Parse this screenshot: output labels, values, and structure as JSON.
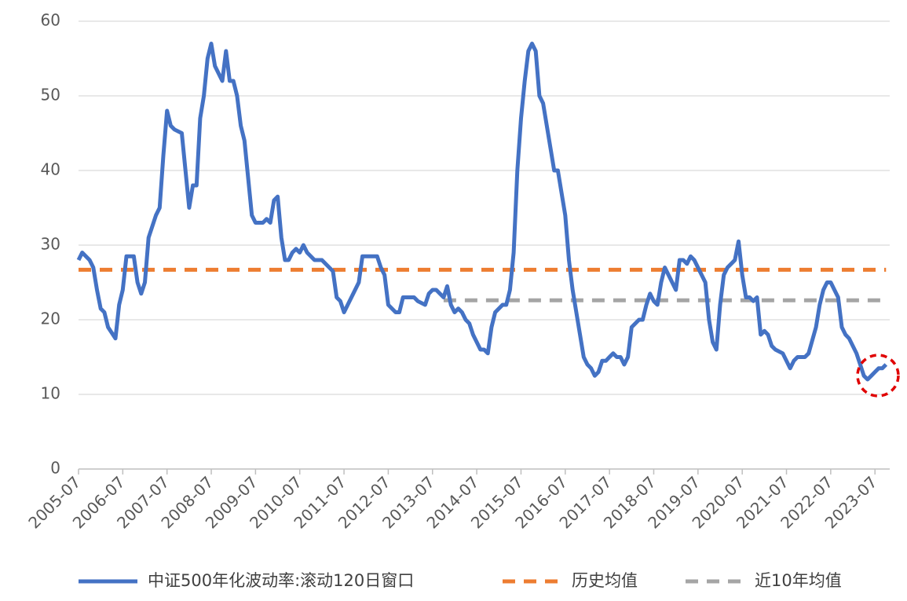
{
  "chart_data": {
    "type": "line",
    "ylim": [
      0,
      60
    ],
    "yticks": [
      0,
      10,
      20,
      30,
      40,
      50,
      60
    ],
    "grid": true,
    "xlim": [
      "2005-07",
      "2023-11"
    ],
    "xticks": [
      "2005-07",
      "2006-07",
      "2007-07",
      "2008-07",
      "2009-07",
      "2010-07",
      "2011-07",
      "2012-07",
      "2013-07",
      "2014-07",
      "2015-07",
      "2016-07",
      "2017-07",
      "2018-07",
      "2019-07",
      "2020-07",
      "2021-07",
      "2022-07",
      "2023-07"
    ],
    "legend": "bottom",
    "series": [
      {
        "name": "中证500年化波动率:滚动120日窗口",
        "color": "#4472c4",
        "dashed": false,
        "x": [
          "2005-07",
          "2005-08",
          "2005-09",
          "2005-10",
          "2005-11",
          "2005-12",
          "2006-01",
          "2006-02",
          "2006-03",
          "2006-05",
          "2006-06",
          "2006-07",
          "2006-08",
          "2006-10",
          "2006-11",
          "2006-12",
          "2007-01",
          "2007-02",
          "2007-04",
          "2007-05",
          "2007-06",
          "2007-07",
          "2007-08",
          "2007-09",
          "2007-11",
          "2007-12",
          "2008-01",
          "2008-02",
          "2008-03",
          "2008-04",
          "2008-05",
          "2008-06",
          "2008-07",
          "2008-08",
          "2008-09",
          "2008-10",
          "2008-11",
          "2008-12",
          "2009-01",
          "2009-02",
          "2009-03",
          "2009-04",
          "2009-05",
          "2009-06",
          "2009-07",
          "2009-09",
          "2009-10",
          "2009-11",
          "2009-12",
          "2010-01",
          "2010-02",
          "2010-03",
          "2010-04",
          "2010-05",
          "2010-06",
          "2010-07",
          "2010-08",
          "2010-09",
          "2010-11",
          "2011-01",
          "2011-03",
          "2011-04",
          "2011-05",
          "2011-06",
          "2011-07",
          "2011-08",
          "2011-09",
          "2011-10",
          "2011-11",
          "2011-12",
          "2012-01",
          "2012-04",
          "2012-05",
          "2012-06",
          "2012-07",
          "2012-08",
          "2012-09",
          "2012-10",
          "2012-11",
          "2012-12",
          "2013-02",
          "2013-03",
          "2013-05",
          "2013-06",
          "2013-07",
          "2013-08",
          "2013-09",
          "2013-10",
          "2013-11",
          "2013-12",
          "2014-01",
          "2014-02",
          "2014-03",
          "2014-04",
          "2014-05",
          "2014-06",
          "2014-07",
          "2014-08",
          "2014-09",
          "2014-10",
          "2014-11",
          "2014-12",
          "2015-02",
          "2015-03",
          "2015-04",
          "2015-05",
          "2015-06",
          "2015-07",
          "2015-08",
          "2015-09",
          "2015-10",
          "2015-11",
          "2015-12",
          "2016-01",
          "2016-02",
          "2016-03",
          "2016-04",
          "2016-05",
          "2016-07",
          "2016-08",
          "2016-09",
          "2016-10",
          "2016-11",
          "2016-12",
          "2017-01",
          "2017-02",
          "2017-03",
          "2017-04",
          "2017-05",
          "2017-06",
          "2017-07",
          "2017-08",
          "2017-09",
          "2017-10",
          "2017-11",
          "2017-12",
          "2018-01",
          "2018-03",
          "2018-04",
          "2018-05",
          "2018-06",
          "2018-07",
          "2018-08",
          "2018-09",
          "2018-10",
          "2018-11",
          "2018-12",
          "2019-01",
          "2019-02",
          "2019-03",
          "2019-04",
          "2019-05",
          "2019-06",
          "2019-07",
          "2019-09",
          "2019-10",
          "2019-11",
          "2019-12",
          "2020-01",
          "2020-02",
          "2020-03",
          "2020-04",
          "2020-05",
          "2020-06",
          "2020-07",
          "2020-08",
          "2020-09",
          "2020-10",
          "2020-11",
          "2020-12",
          "2021-01",
          "2021-02",
          "2021-03",
          "2021-04",
          "2021-06",
          "2021-07",
          "2021-08",
          "2021-09",
          "2021-10",
          "2021-11",
          "2021-12",
          "2022-01",
          "2022-03",
          "2022-04",
          "2022-05",
          "2022-06",
          "2022-07",
          "2022-08",
          "2022-09",
          "2022-10",
          "2022-11",
          "2022-12",
          "2023-01",
          "2023-02",
          "2023-03",
          "2023-04",
          "2023-05",
          "2023-06",
          "2023-07",
          "2023-08",
          "2023-09",
          "2023-10"
        ],
        "values": [
          28,
          29,
          28.5,
          28,
          27,
          24,
          21.5,
          21,
          19,
          17.5,
          22,
          24,
          28.5,
          28.5,
          25,
          23.5,
          25,
          31,
          34,
          35,
          42,
          48,
          46,
          45.5,
          45,
          40,
          35,
          38,
          38,
          47,
          50,
          55,
          57,
          54,
          53,
          52,
          56,
          52,
          52,
          50,
          46,
          44,
          39,
          34,
          33,
          33,
          33.5,
          33,
          36,
          36.5,
          31,
          28,
          28,
          29,
          29.5,
          29,
          30,
          29,
          28,
          28,
          27,
          26.5,
          23,
          22.5,
          21,
          22,
          23,
          24,
          25,
          28.5,
          28.5,
          28.5,
          27,
          26,
          22,
          21.5,
          21,
          21,
          23,
          23,
          23,
          22.5,
          22,
          23.5,
          24,
          24,
          23.5,
          23,
          24.5,
          22,
          21,
          21.5,
          21,
          20,
          19.5,
          18,
          17,
          16,
          16,
          15.5,
          19,
          21,
          22,
          22,
          24,
          29,
          40,
          47,
          52,
          56,
          57,
          56,
          50,
          49,
          46,
          43,
          40,
          40,
          34,
          28,
          24,
          21,
          18,
          15,
          14,
          13.5,
          12.5,
          13,
          14.5,
          14.5,
          15,
          15.5,
          15,
          15,
          14,
          15,
          19,
          20,
          20,
          22,
          23.5,
          22.5,
          22,
          25,
          27,
          26,
          25,
          24,
          28,
          28,
          27.5,
          28.5,
          28,
          27,
          25,
          20,
          17,
          16,
          22,
          26,
          27,
          27.5,
          28,
          30.5,
          26,
          23,
          23,
          22.5,
          23,
          18,
          18.5,
          18,
          16.5,
          16,
          15.5,
          14.5,
          13.5,
          14.5,
          15,
          15,
          15,
          15.5,
          19,
          22,
          24,
          25,
          25,
          24,
          23,
          19,
          18,
          17.5,
          16.5,
          15.5,
          14,
          12.5,
          12,
          12.5,
          13,
          13.5,
          13.5,
          14
        ]
      },
      {
        "name": "历史均值",
        "color": "#ed7d31",
        "dashed": true,
        "x": [
          "2005-07",
          "2023-10"
        ],
        "values": [
          26.7,
          26.7
        ]
      },
      {
        "name": "近10年均值",
        "color": "#a5a5a5",
        "dashed": true,
        "x": [
          "2013-10",
          "2023-10"
        ],
        "values": [
          22.6,
          22.6
        ]
      }
    ]
  }
}
